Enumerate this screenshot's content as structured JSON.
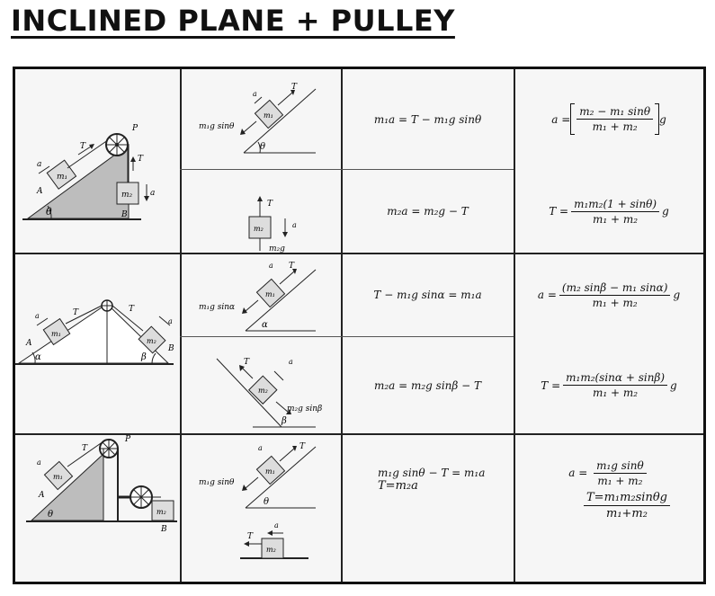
{
  "title": "INCLINED PLANE + PULLEY",
  "labels": {
    "a": "a",
    "T": "T",
    "P": "P",
    "A": "A",
    "B": "B",
    "m1": "m₁",
    "m2": "m₂",
    "theta": "θ",
    "alpha": "α",
    "beta": "β",
    "mg_sin_theta": "m₁g sinθ",
    "mg_sin_alpha": "m₁g sinα",
    "m2g_sin_beta": "m₂g sinβ",
    "m2g": "m₂g"
  },
  "rows": [
    {
      "eq1": "m₁a = T − m₁g sinθ",
      "eq2": "m₂a = m₂g − T",
      "acc_prefix": "a =",
      "acc_num": "m₂ − m₁ sinθ",
      "acc_den": "m₁ + m₂",
      "acc_suffix": "g",
      "ten_prefix": "T =",
      "ten_num": "m₁m₂(1 + sinθ)",
      "ten_den": "m₁ + m₂",
      "ten_suffix": "g"
    },
    {
      "eq1": "T − m₁g sinα = m₁a",
      "eq2": "m₂a = m₂g sinβ − T",
      "acc_prefix": "a =",
      "acc_num": "(m₂ sinβ − m₁ sinα)",
      "acc_den": "m₁ + m₂",
      "acc_suffix": "g",
      "ten_prefix": "T =",
      "ten_num": "m₁m₂(sinα + sinβ)",
      "ten_den": "m₁ + m₂",
      "ten_suffix": "g"
    },
    {
      "eq1": "m₁g sinθ − T = m₁a",
      "eq2": "T=m₂a",
      "acc_prefix": "a =",
      "acc_num": "m₁g sinθ",
      "acc_den": "m₁ + m₂",
      "ten_prefix": "T=",
      "ten_num": "m₁m₂sinθg",
      "ten_den": "m₁+m₂"
    }
  ]
}
